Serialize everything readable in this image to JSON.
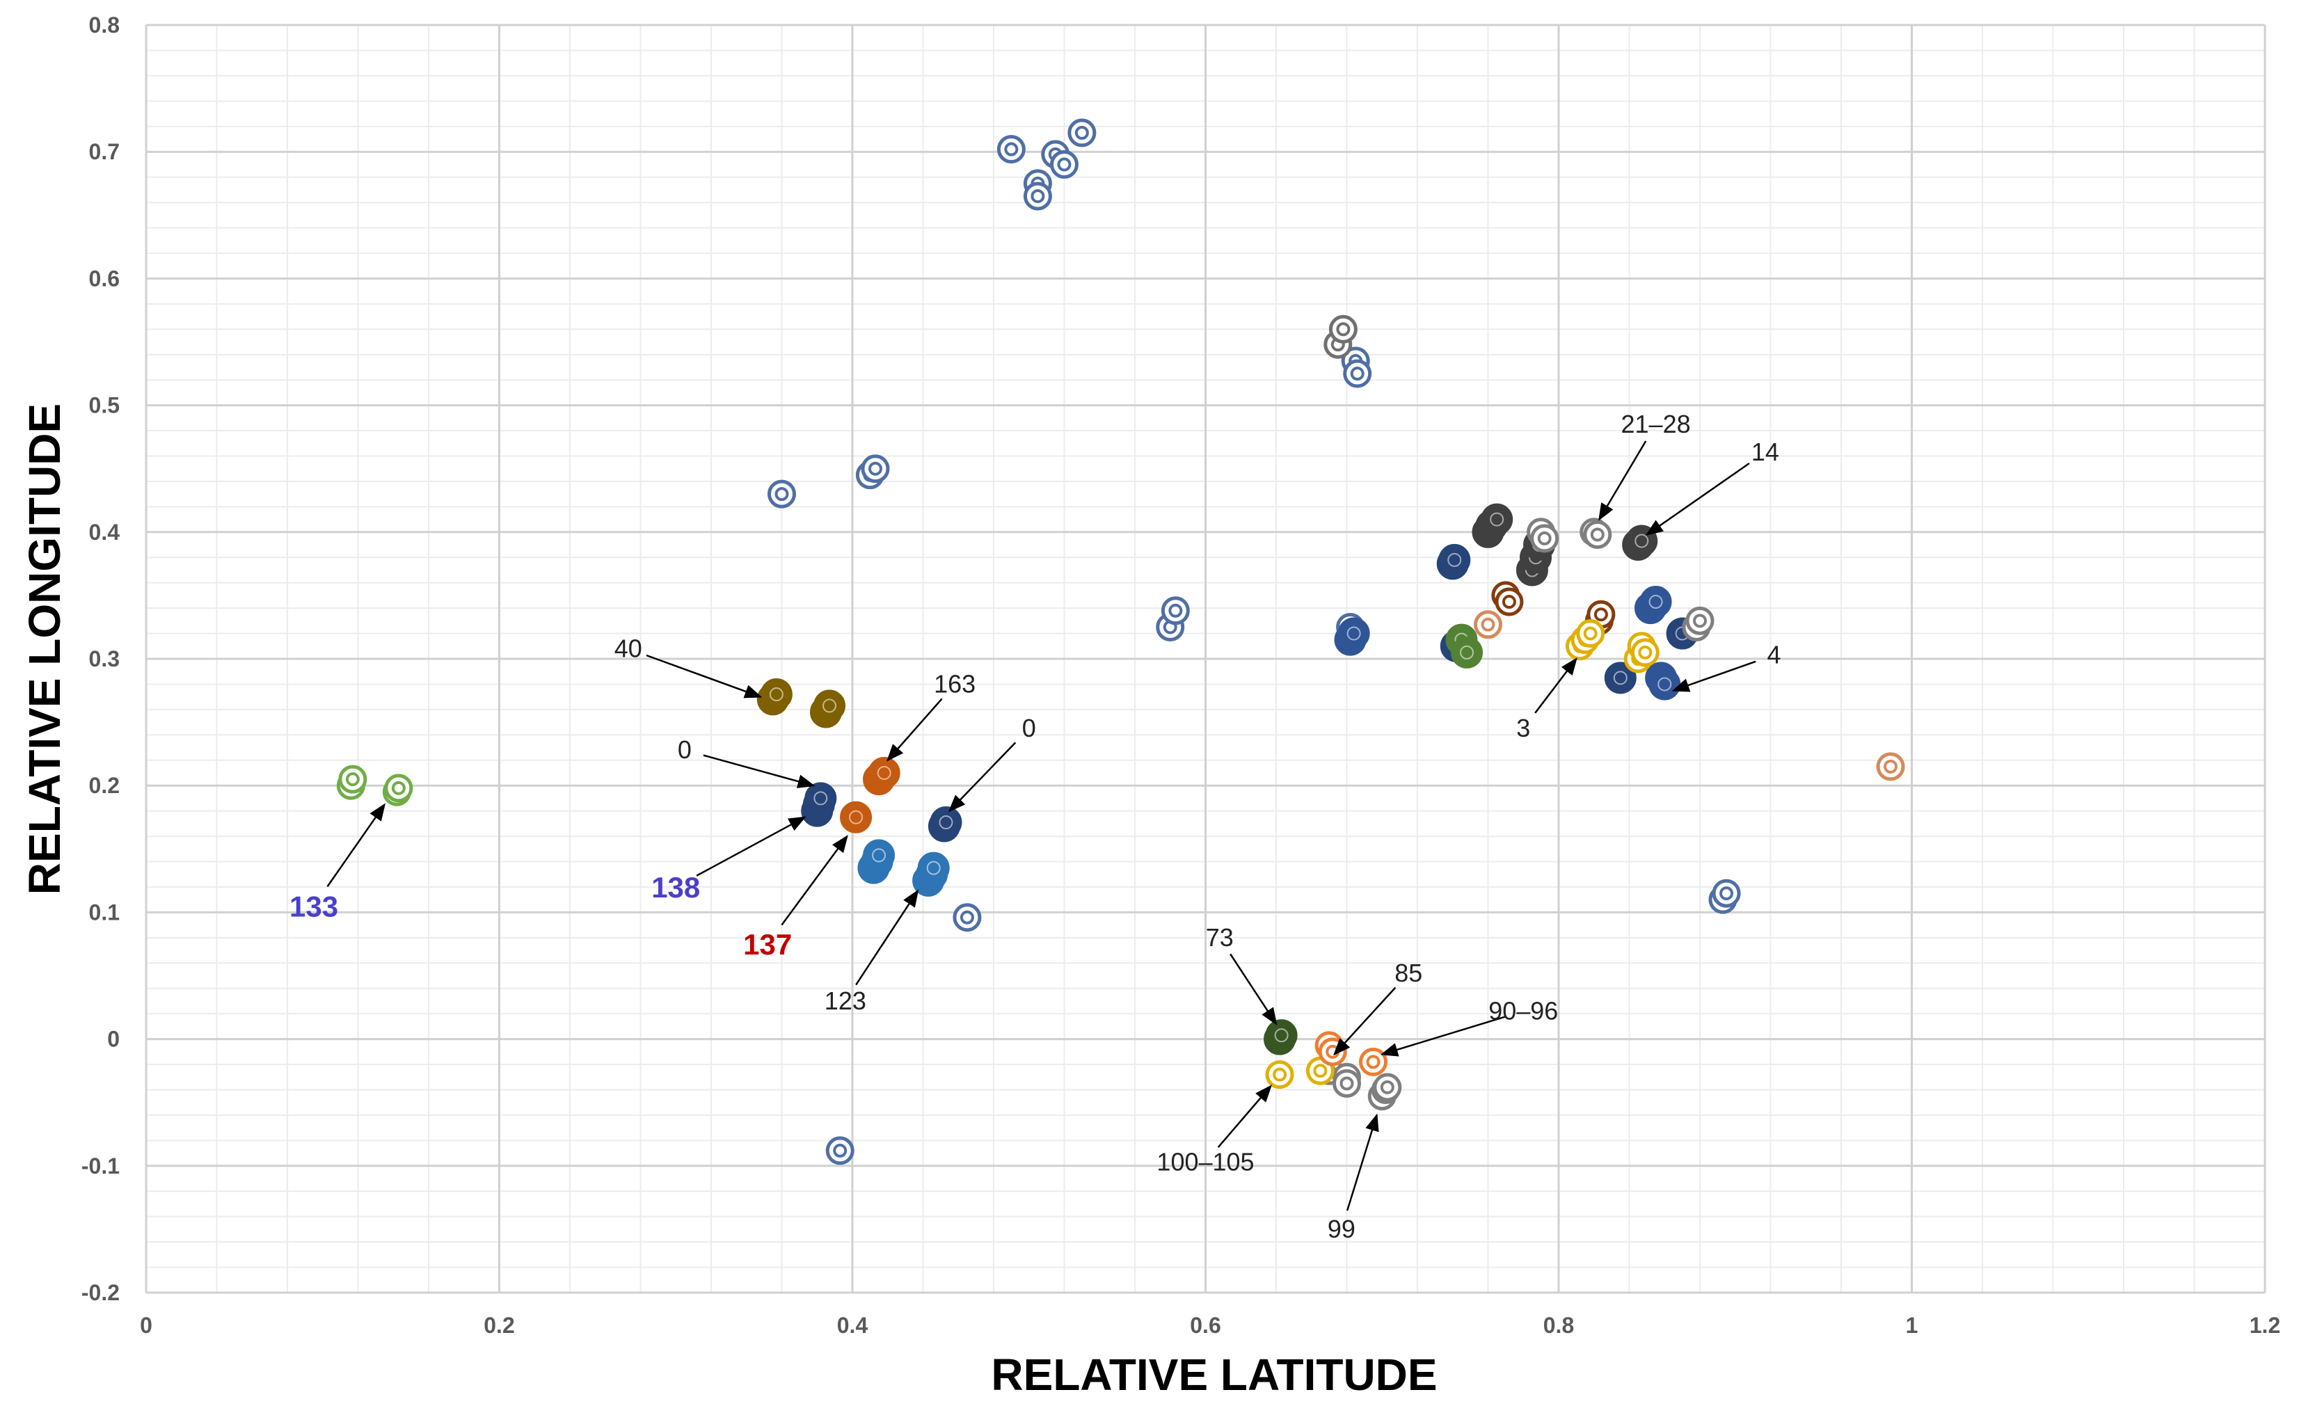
{
  "chart_data": {
    "type": "scatter",
    "title": "",
    "xlabel": "RELATIVE LATITUDE",
    "ylabel": "RELATIVE LONGITUDE",
    "xlim": [
      0,
      1.2
    ],
    "ylim": [
      -0.2,
      0.8
    ],
    "xticks": [
      0,
      0.2,
      0.4,
      0.6,
      0.8,
      1,
      1.2
    ],
    "yticks": [
      -0.2,
      -0.1,
      0,
      0.1,
      0.2,
      0.3,
      0.4,
      0.5,
      0.6,
      0.7,
      0.8
    ],
    "xtick_labels": [
      "0",
      "0.2",
      "0.4",
      "0.6",
      "0.8",
      "1",
      "1.2"
    ],
    "ytick_labels": [
      "-0.2",
      "-0.1",
      "0",
      "0.1",
      "0.2",
      "0.3",
      "0.4",
      "0.5",
      "0.6",
      "0.7",
      "0.8"
    ],
    "grid": true,
    "series": [
      {
        "name": "open-blue",
        "color": "#4F6FA5",
        "filled": false,
        "points": [
          [
            0.49,
            0.702
          ],
          [
            0.505,
            0.675
          ],
          [
            0.505,
            0.665
          ],
          [
            0.515,
            0.698
          ],
          [
            0.52,
            0.69
          ],
          [
            0.53,
            0.715
          ],
          [
            0.36,
            0.43
          ],
          [
            0.41,
            0.445
          ],
          [
            0.413,
            0.45
          ],
          [
            0.58,
            0.325
          ],
          [
            0.583,
            0.338
          ],
          [
            0.682,
            0.325
          ],
          [
            0.685,
            0.535
          ],
          [
            0.686,
            0.525
          ],
          [
            0.465,
            0.096
          ],
          [
            0.393,
            -0.088
          ],
          [
            0.893,
            0.11
          ],
          [
            0.895,
            0.115
          ]
        ]
      },
      {
        "name": "open-gray",
        "color": "#707070",
        "filled": false,
        "points": [
          [
            0.675,
            0.548
          ],
          [
            0.678,
            0.56
          ]
        ]
      },
      {
        "name": "green",
        "color": "#70AD47",
        "filled": false,
        "points": [
          [
            0.116,
            0.2
          ],
          [
            0.117,
            0.205
          ],
          [
            0.142,
            0.195
          ],
          [
            0.143,
            0.198
          ]
        ]
      },
      {
        "name": "olive",
        "color": "#7F6000",
        "filled": true,
        "points": [
          [
            0.355,
            0.268
          ],
          [
            0.357,
            0.272
          ],
          [
            0.385,
            0.258
          ],
          [
            0.387,
            0.263
          ]
        ]
      },
      {
        "name": "navy",
        "color": "#264478",
        "filled": true,
        "points": [
          [
            0.38,
            0.18
          ],
          [
            0.381,
            0.185
          ],
          [
            0.382,
            0.19
          ],
          [
            0.452,
            0.168
          ],
          [
            0.453,
            0.171
          ],
          [
            0.74,
            0.375
          ],
          [
            0.741,
            0.378
          ],
          [
            0.742,
            0.31
          ],
          [
            0.835,
            0.285
          ],
          [
            0.87,
            0.32
          ]
        ]
      },
      {
        "name": "orange-dark",
        "color": "#C55A11",
        "filled": true,
        "points": [
          [
            0.415,
            0.205
          ],
          [
            0.418,
            0.21
          ],
          [
            0.402,
            0.175
          ]
        ]
      },
      {
        "name": "light-blue",
        "color": "#2E75B6",
        "filled": true,
        "points": [
          [
            0.412,
            0.135
          ],
          [
            0.414,
            0.14
          ],
          [
            0.415,
            0.145
          ],
          [
            0.443,
            0.125
          ],
          [
            0.445,
            0.13
          ],
          [
            0.446,
            0.135
          ]
        ]
      },
      {
        "name": "royal-blue",
        "color": "#2F5597",
        "filled": true,
        "points": [
          [
            0.682,
            0.315
          ],
          [
            0.684,
            0.32
          ],
          [
            0.852,
            0.34
          ],
          [
            0.855,
            0.345
          ],
          [
            0.858,
            0.285
          ],
          [
            0.86,
            0.28
          ]
        ]
      },
      {
        "name": "dark-gray",
        "color": "#404040",
        "filled": true,
        "points": [
          [
            0.76,
            0.4
          ],
          [
            0.762,
            0.405
          ],
          [
            0.765,
            0.41
          ],
          [
            0.785,
            0.37
          ],
          [
            0.787,
            0.38
          ],
          [
            0.789,
            0.39
          ],
          [
            0.845,
            0.39
          ],
          [
            0.847,
            0.393
          ]
        ]
      },
      {
        "name": "gray",
        "color": "#7F7F7F",
        "filled": false,
        "points": [
          [
            0.79,
            0.4
          ],
          [
            0.792,
            0.395
          ],
          [
            0.82,
            0.4
          ],
          [
            0.822,
            0.398
          ],
          [
            0.878,
            0.325
          ],
          [
            0.88,
            0.33
          ],
          [
            0.67,
            -0.025
          ],
          [
            0.68,
            -0.03
          ],
          [
            0.68,
            -0.035
          ],
          [
            0.7,
            -0.045
          ],
          [
            0.702,
            -0.04
          ],
          [
            0.703,
            -0.038
          ]
        ]
      },
      {
        "name": "brown",
        "color": "#843C0C",
        "filled": false,
        "points": [
          [
            0.77,
            0.35
          ],
          [
            0.772,
            0.345
          ],
          [
            0.823,
            0.33
          ],
          [
            0.824,
            0.335
          ]
        ]
      },
      {
        "name": "peach",
        "color": "#D58A5C",
        "filled": false,
        "points": [
          [
            0.76,
            0.327
          ],
          [
            0.988,
            0.215
          ]
        ]
      },
      {
        "name": "yellow",
        "color": "#E0B000",
        "filled": false,
        "points": [
          [
            0.812,
            0.31
          ],
          [
            0.815,
            0.315
          ],
          [
            0.818,
            0.32
          ],
          [
            0.845,
            0.3
          ],
          [
            0.847,
            0.31
          ],
          [
            0.849,
            0.305
          ],
          [
            0.642,
            -0.028
          ],
          [
            0.665,
            -0.025
          ]
        ]
      },
      {
        "name": "dark-green",
        "color": "#375623",
        "filled": true,
        "points": [
          [
            0.642,
            0.0
          ],
          [
            0.643,
            0.003
          ]
        ]
      },
      {
        "name": "green-mid",
        "color": "#548235",
        "filled": true,
        "points": [
          [
            0.745,
            0.315
          ],
          [
            0.748,
            0.305
          ]
        ]
      },
      {
        "name": "orange",
        "color": "#ED7D31",
        "filled": false,
        "points": [
          [
            0.67,
            -0.005
          ],
          [
            0.672,
            -0.01
          ],
          [
            0.695,
            -0.018
          ]
        ]
      }
    ],
    "annotations": [
      {
        "text": "133",
        "color": "#4B3FC8",
        "big": true,
        "target": [
          0.135,
          0.185
        ],
        "label": [
          0.095,
          0.105
        ]
      },
      {
        "text": "138",
        "color": "#4B3FC8",
        "big": true,
        "target": [
          0.373,
          0.175
        ],
        "label": [
          0.3,
          0.12
        ]
      },
      {
        "text": "137",
        "color": "#C00000",
        "big": true,
        "target": [
          0.397,
          0.16
        ],
        "label": [
          0.352,
          0.075
        ]
      },
      {
        "text": "123",
        "color": "#222222",
        "big": false,
        "target": [
          0.437,
          0.117
        ],
        "label": [
          0.396,
          0.03
        ]
      },
      {
        "text": "0",
        "color": "#222222",
        "big": false,
        "target": [
          0.378,
          0.2
        ],
        "label": [
          0.305,
          0.228
        ]
      },
      {
        "text": "40",
        "color": "#222222",
        "big": false,
        "target": [
          0.348,
          0.27
        ],
        "label": [
          0.273,
          0.308
        ]
      },
      {
        "text": "163",
        "color": "#222222",
        "big": false,
        "target": [
          0.42,
          0.22
        ],
        "label": [
          0.458,
          0.28
        ]
      },
      {
        "text": "0",
        "color": "#222222",
        "big": false,
        "target": [
          0.455,
          0.18
        ],
        "label": [
          0.5,
          0.245
        ]
      },
      {
        "text": "21–28",
        "color": "#222222",
        "big": false,
        "target": [
          0.823,
          0.41
        ],
        "label": [
          0.855,
          0.485
        ]
      },
      {
        "text": "14",
        "color": "#222222",
        "big": false,
        "target": [
          0.85,
          0.398
        ],
        "label": [
          0.917,
          0.463
        ]
      },
      {
        "text": "4",
        "color": "#222222",
        "big": false,
        "target": [
          0.865,
          0.275
        ],
        "label": [
          0.922,
          0.303
        ]
      },
      {
        "text": "3",
        "color": "#222222",
        "big": false,
        "target": [
          0.81,
          0.3
        ],
        "label": [
          0.78,
          0.245
        ]
      },
      {
        "text": "73",
        "color": "#222222",
        "big": false,
        "target": [
          0.64,
          0.012
        ],
        "label": [
          0.608,
          0.08
        ]
      },
      {
        "text": "85",
        "color": "#222222",
        "big": false,
        "target": [
          0.673,
          -0.012
        ],
        "label": [
          0.715,
          0.052
        ]
      },
      {
        "text": "90–96",
        "color": "#222222",
        "big": false,
        "target": [
          0.7,
          -0.012
        ],
        "label": [
          0.78,
          0.022
        ]
      },
      {
        "text": "100–105",
        "color": "#222222",
        "big": false,
        "target": [
          0.637,
          -0.037
        ],
        "label": [
          0.6,
          -0.097
        ]
      },
      {
        "text": "99",
        "color": "#222222",
        "big": false,
        "target": [
          0.697,
          -0.06
        ],
        "label": [
          0.677,
          -0.15
        ]
      }
    ]
  }
}
